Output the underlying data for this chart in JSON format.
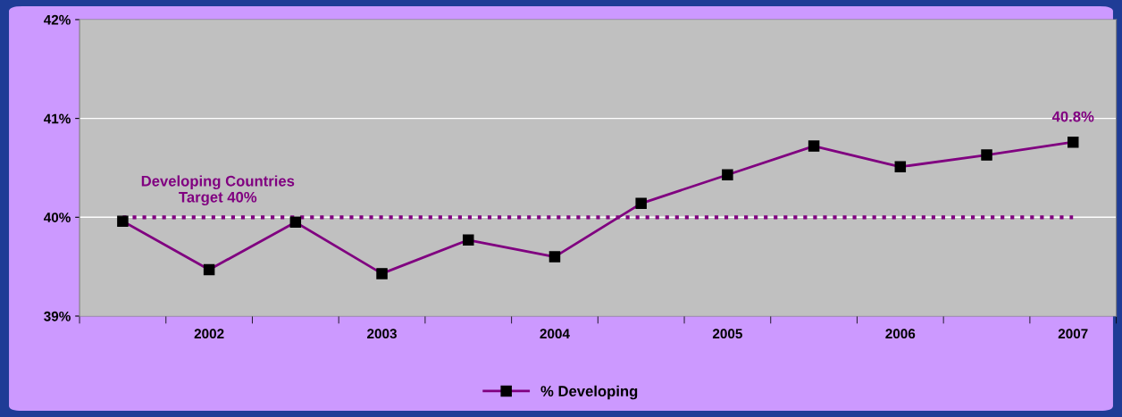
{
  "chart_data": {
    "type": "line",
    "categories": [
      null,
      "2002",
      null,
      "2003",
      null,
      "2004",
      null,
      "2005",
      null,
      "2006",
      null,
      "2007"
    ],
    "series": [
      {
        "name": "% Developing",
        "color": "#800080",
        "values": [
          39.96,
          39.47,
          39.95,
          39.43,
          39.77,
          39.6,
          40.14,
          40.43,
          40.72,
          40.51,
          40.63,
          40.76
        ],
        "value_labels": [
          null,
          null,
          null,
          null,
          null,
          null,
          null,
          null,
          null,
          null,
          null,
          "40.8%"
        ]
      }
    ],
    "ylim": [
      39,
      42
    ],
    "yticks": [
      {
        "value": 39,
        "label": "39%"
      },
      {
        "value": 40,
        "label": "40%"
      },
      {
        "value": 41,
        "label": "41%"
      },
      {
        "value": 42,
        "label": "42%"
      }
    ],
    "ref_lines": [
      {
        "axis": "y",
        "value": 40,
        "label": "Developing Countries\nTarget 40%",
        "color": "#800080",
        "line_style": "dotted"
      }
    ],
    "grid": "y",
    "legend": "bottom",
    "marker": "square",
    "line_style": "solid"
  }
}
